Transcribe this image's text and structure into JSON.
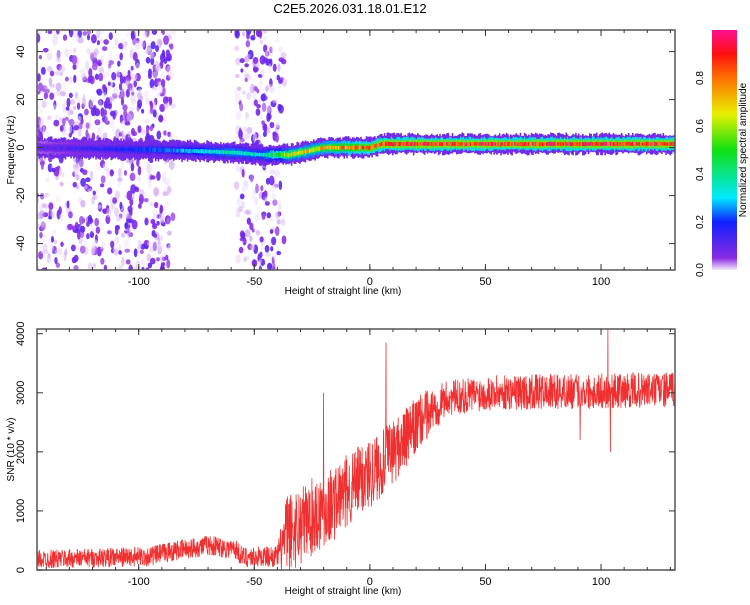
{
  "title": "C2E5.2026.031.18.01.E12",
  "chart_data": [
    {
      "type": "heatmap",
      "xlabel": "Height of straight line (km)",
      "ylabel": "Frequency (Hz)",
      "xlim": [
        -144,
        132
      ],
      "ylim": [
        -51,
        49
      ],
      "xticks": [
        -100,
        -50,
        0,
        50,
        100
      ],
      "yticks": [
        -40,
        -20,
        0,
        20,
        40
      ],
      "ridge": [
        [
          -144,
          0
        ],
        [
          -90,
          -1
        ],
        [
          -60,
          -2
        ],
        [
          -47,
          -3
        ],
        [
          -35,
          -3
        ],
        [
          -20,
          0
        ],
        [
          -15,
          0
        ],
        [
          0,
          0
        ],
        [
          5,
          1.5
        ],
        [
          132,
          1.5
        ]
      ],
      "ridge_amplitude": [
        [
          -144,
          0.1
        ],
        [
          -90,
          0.25
        ],
        [
          -60,
          0.4
        ],
        [
          -47,
          0.35
        ],
        [
          -35,
          0.7
        ],
        [
          -20,
          0.75
        ],
        [
          0,
          0.9
        ],
        [
          5,
          0.95
        ],
        [
          132,
          0.95
        ]
      ],
      "clutter_bands": [
        [
          -144,
          -88
        ],
        [
          -58,
          -40
        ]
      ],
      "colorbar": {
        "label": "Normalized spectral amplitude",
        "range": [
          0,
          1
        ],
        "ticks": [
          "0.0",
          "0.2",
          "0.4",
          "0.6",
          "0.8"
        ],
        "stops": [
          [
            0,
            "#f4e8fb"
          ],
          [
            0.05,
            "#8a2be2"
          ],
          [
            0.2,
            "#1020ff"
          ],
          [
            0.3,
            "#00e8ff"
          ],
          [
            0.5,
            "#10e010"
          ],
          [
            0.65,
            "#e8f000"
          ],
          [
            0.8,
            "#ff7000"
          ],
          [
            0.9,
            "#ff1010"
          ],
          [
            1,
            "#ff1090"
          ]
        ]
      }
    },
    {
      "type": "line",
      "xlabel": "Height of straight line (km)",
      "ylabel": "SNR (10 * v/v)",
      "xlim": [
        -144,
        132
      ],
      "ylim": [
        0,
        4080
      ],
      "xticks": [
        -100,
        -50,
        0,
        50,
        100
      ],
      "yticks": [
        0,
        1000,
        2000,
        3000,
        4000
      ],
      "color": "#f03030",
      "trend": [
        [
          -144,
          180
        ],
        [
          -95,
          230
        ],
        [
          -88,
          300
        ],
        [
          -70,
          420
        ],
        [
          -58,
          350
        ],
        [
          -55,
          220
        ],
        [
          -40,
          230
        ],
        [
          -36,
          600
        ],
        [
          -25,
          900
        ],
        [
          -15,
          1150
        ],
        [
          -5,
          1500
        ],
        [
          5,
          1800
        ],
        [
          15,
          2200
        ],
        [
          25,
          2650
        ],
        [
          33,
          2900
        ],
        [
          50,
          3000
        ],
        [
          132,
          3050
        ]
      ],
      "noise": [
        [
          -144,
          160
        ],
        [
          -40,
          180
        ],
        [
          -36,
          700
        ],
        [
          0,
          600
        ],
        [
          20,
          500
        ],
        [
          33,
          300
        ],
        [
          132,
          300
        ]
      ],
      "spikes": [
        [
          -20,
          3000
        ],
        [
          7,
          3850
        ],
        [
          103,
          4080
        ],
        [
          104,
          2000
        ],
        [
          91,
          2200
        ]
      ]
    }
  ]
}
